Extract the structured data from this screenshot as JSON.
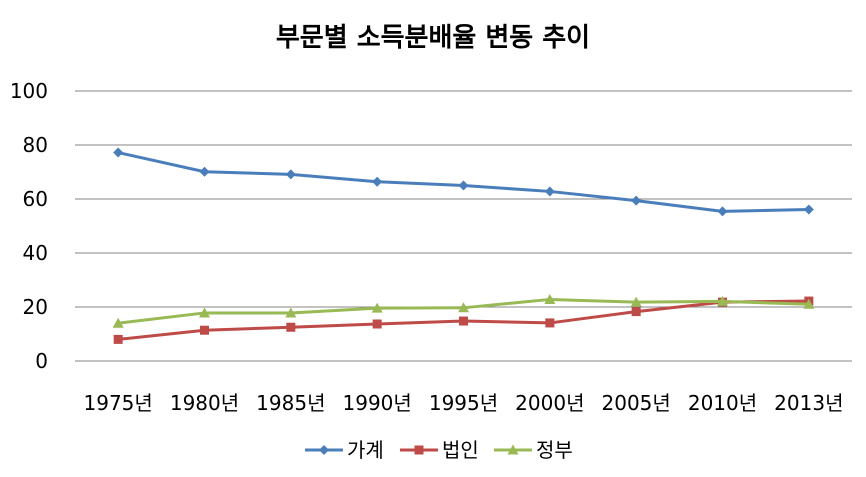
{
  "chart_data": {
    "type": "line",
    "title": "부문별 소득분배율 변동 추이",
    "xlabel": "",
    "ylabel": "",
    "categories": [
      "1975년",
      "1980년",
      "1985년",
      "1990년",
      "1995년",
      "2000년",
      "2005년",
      "2010년",
      "2013년"
    ],
    "ylim": [
      0,
      100
    ],
    "yticks": [
      0,
      20,
      40,
      60,
      80,
      100
    ],
    "grid": true,
    "legend": "bottom",
    "series": [
      {
        "name": "가계",
        "color": "#4a7ebb",
        "marker": "diamond",
        "values": [
          77.2,
          70.1,
          69.1,
          66.4,
          65.0,
          62.8,
          59.4,
          55.4,
          56.1
        ]
      },
      {
        "name": "법인",
        "color": "#be4b48",
        "marker": "square",
        "values": [
          8.0,
          11.4,
          12.5,
          13.7,
          14.8,
          14.1,
          18.3,
          21.8,
          22.2
        ]
      },
      {
        "name": "정부",
        "color": "#98b954",
        "marker": "triangle",
        "values": [
          14.0,
          17.8,
          17.8,
          19.6,
          19.7,
          22.8,
          21.8,
          22.1,
          21.0
        ]
      }
    ]
  }
}
